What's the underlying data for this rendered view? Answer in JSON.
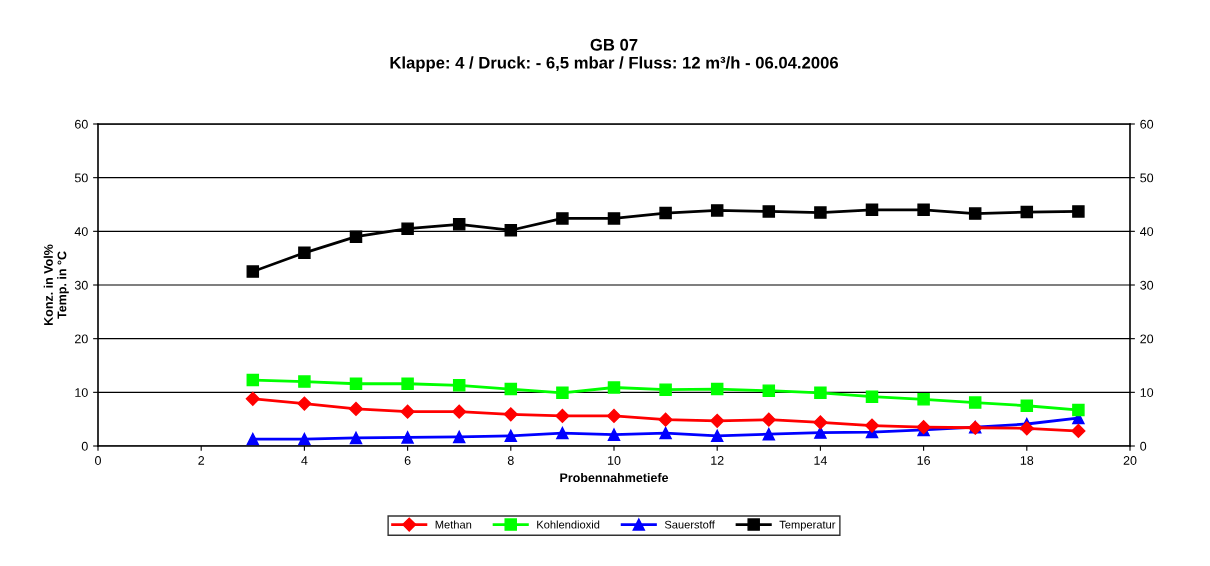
{
  "chart_data": {
    "type": "line",
    "title": "GB 07",
    "subtitle": "Klappe: 4 / Druck: - 6,5 mbar / Fluss: 12 m³/h - 06.04.2006",
    "xlabel": "Probennahmetiefe",
    "ylabel": "Konz. in Vol%\nTemp. in °C",
    "x": [
      3,
      4,
      5,
      6,
      7,
      8,
      9,
      10,
      11,
      12,
      13,
      14,
      15,
      16,
      17,
      18,
      19
    ],
    "series": [
      {
        "name": "Methan",
        "color": "#ff0000",
        "marker": "diamond",
        "values": [
          8.8,
          7.9,
          6.9,
          6.4,
          6.4,
          5.9,
          5.6,
          5.6,
          4.9,
          4.7,
          4.9,
          4.4,
          3.8,
          3.5,
          3.4,
          3.3,
          2.8
        ]
      },
      {
        "name": "Kohlendioxid",
        "color": "#00ff00",
        "marker": "square",
        "values": [
          12.3,
          12.0,
          11.6,
          11.6,
          11.3,
          10.6,
          9.9,
          10.9,
          10.5,
          10.6,
          10.3,
          9.9,
          9.2,
          8.7,
          8.1,
          7.5,
          6.7
        ]
      },
      {
        "name": "Sauerstoff",
        "color": "#0000ff",
        "marker": "triangle",
        "values": [
          1.3,
          1.3,
          1.5,
          1.6,
          1.7,
          1.9,
          2.4,
          2.1,
          2.4,
          1.9,
          2.2,
          2.5,
          2.6,
          3.0,
          3.5,
          4.1,
          5.2
        ]
      },
      {
        "name": "Temperatur",
        "color": "#000000",
        "marker": "square",
        "values": [
          32.5,
          36,
          39,
          40.5,
          41.3,
          40.2,
          42.4,
          42.4,
          43.4,
          43.9,
          43.7,
          43.5,
          44,
          44,
          43.3,
          43.6,
          43.7
        ]
      }
    ],
    "xlim": [
      0,
      20
    ],
    "xticks": [
      0,
      2,
      4,
      6,
      8,
      10,
      12,
      14,
      16,
      18,
      20
    ],
    "ylim": [
      0,
      60
    ],
    "yticks": [
      0,
      10,
      20,
      30,
      40,
      50,
      60
    ],
    "y2lim": [
      0,
      60
    ],
    "y2ticks": [
      0,
      10,
      20,
      30,
      40,
      50,
      60
    ],
    "grid": "y",
    "legend": "bottom"
  }
}
